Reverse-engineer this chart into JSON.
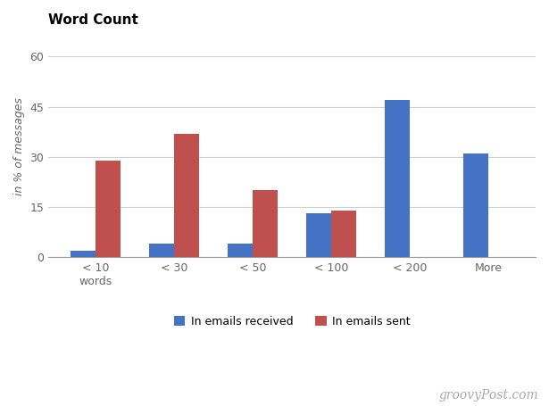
{
  "title": "Word Count",
  "ylabel": "in % of messages",
  "categories": [
    "< 10\nwords",
    "< 30",
    "< 50",
    "< 100",
    "< 200",
    "More"
  ],
  "received": [
    2,
    4,
    4,
    13,
    47,
    31
  ],
  "sent": [
    29,
    37,
    20,
    14,
    0,
    0
  ],
  "color_received": "#4472C4",
  "color_sent": "#C0504D",
  "legend_received": "In emails received",
  "legend_sent": "In emails sent",
  "yticks": [
    0,
    15,
    30,
    45,
    60
  ],
  "ylim": [
    0,
    66
  ],
  "background_color": "#ffffff",
  "grid_color": "#d0d0d0",
  "watermark": "groovyPost.com",
  "bar_width": 0.32
}
